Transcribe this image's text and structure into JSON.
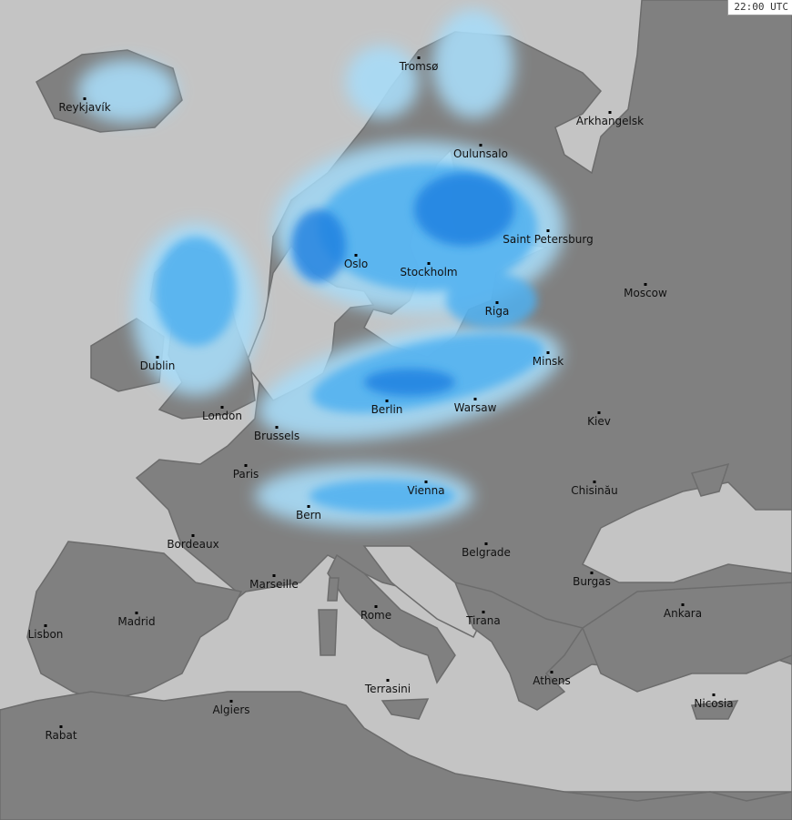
{
  "timestamp": "22:00 UTC",
  "colors": {
    "sea": "#c4c4c4",
    "land": "#808080",
    "precip_light": "#a8dcf8",
    "precip_medium": "#4fb0f0",
    "precip_heavy": "#1f7fe0"
  },
  "cities": [
    "Tromsø",
    "Reykjavík",
    "Arkhangelsk",
    "Oulunsalo",
    "Saint Petersburg",
    "Oslo",
    "Stockholm",
    "Moscow",
    "Riga",
    "Minsk",
    "Dublin",
    "Berlin",
    "Warsaw",
    "London",
    "Kiev",
    "Brussels",
    "Paris",
    "Vienna",
    "Chisinău",
    "Bern",
    "Bordeaux",
    "Belgrade",
    "Marseille",
    "Burgas",
    "Ankara",
    "Rome",
    "Tirana",
    "Madrid",
    "Lisbon",
    "Athens",
    "Terrasini",
    "Nicosia",
    "Algiers",
    "Rabat"
  ]
}
